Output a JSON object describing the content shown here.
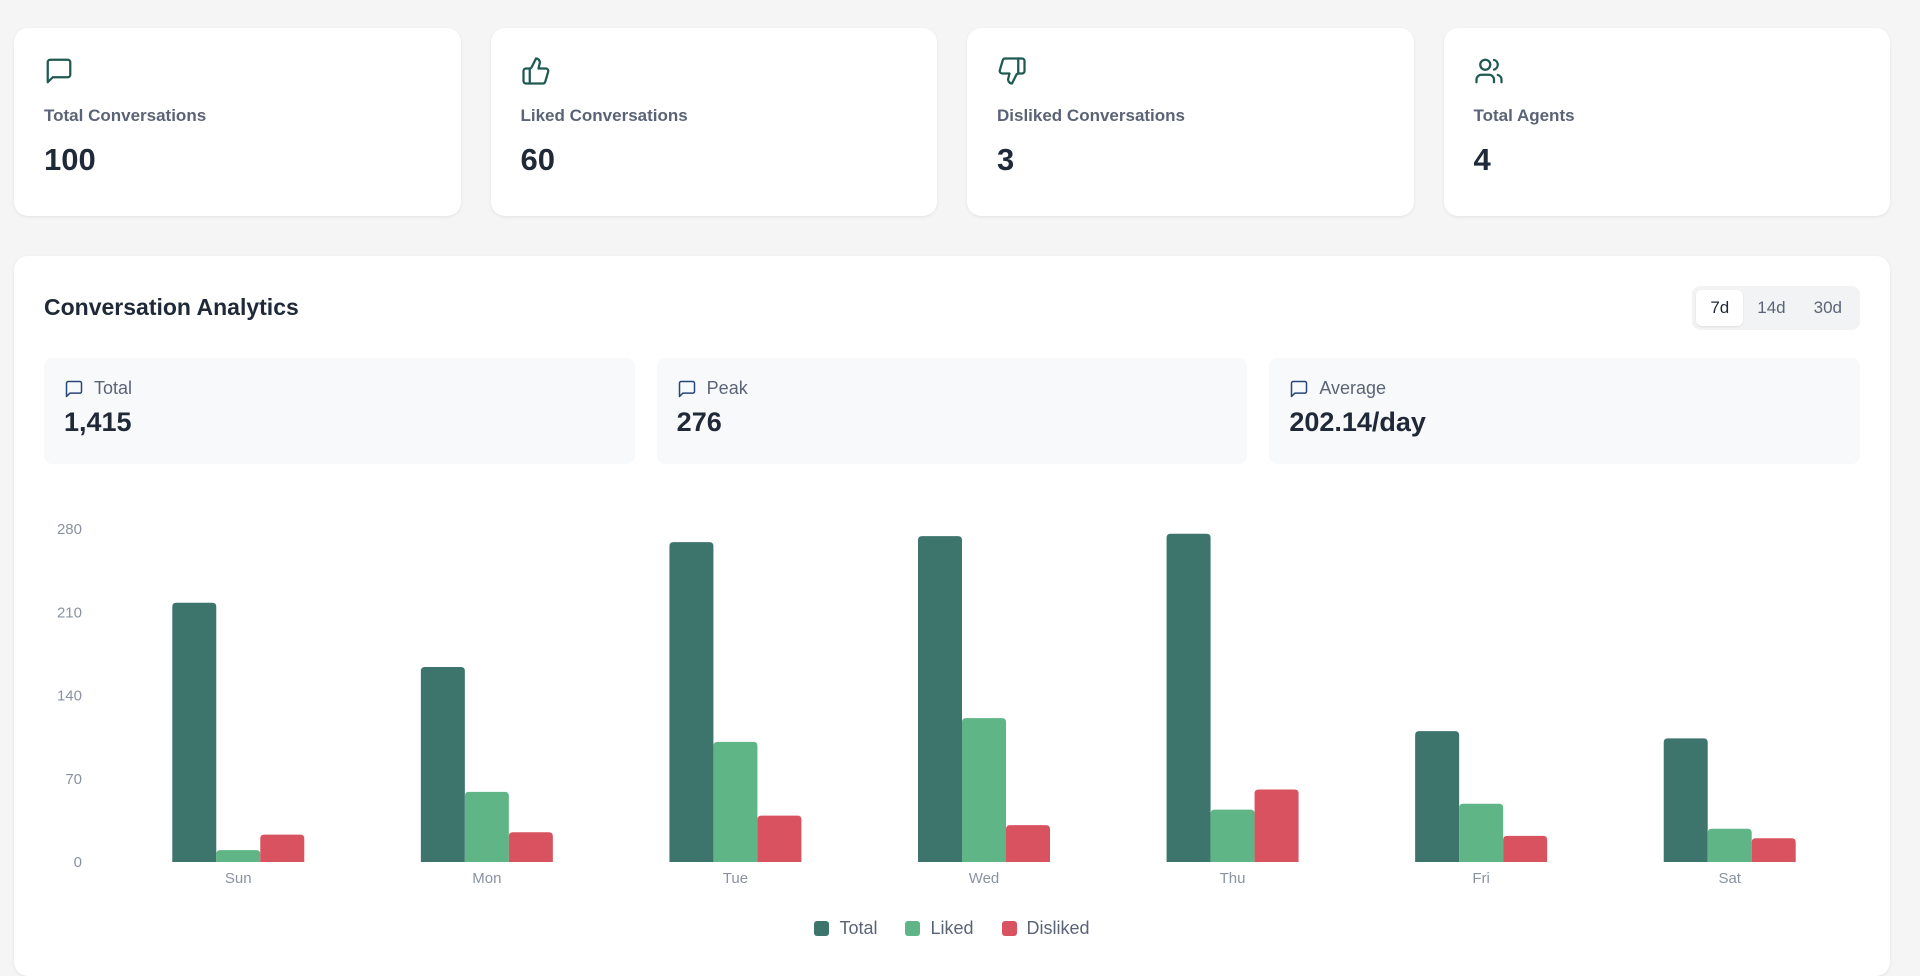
{
  "stats": [
    {
      "icon": "message-square-icon",
      "label": "Total Conversations",
      "value": "100"
    },
    {
      "icon": "thumbs-up-icon",
      "label": "Liked Conversations",
      "value": "60"
    },
    {
      "icon": "thumbs-down-icon",
      "label": "Disliked Conversations",
      "value": "3"
    },
    {
      "icon": "users-icon",
      "label": "Total Agents",
      "value": "4"
    }
  ],
  "analytics": {
    "title": "Conversation Analytics",
    "ranges": [
      "7d",
      "14d",
      "30d"
    ],
    "selected_range": "7d",
    "summary": [
      {
        "icon": "message-square-icon",
        "label": "Total",
        "value": "1,415"
      },
      {
        "icon": "message-square-icon",
        "label": "Peak",
        "value": "276"
      },
      {
        "icon": "message-square-icon",
        "label": "Average",
        "value": "202.14/day"
      }
    ]
  },
  "colors": {
    "total": "#3d756d",
    "liked": "#5fb585",
    "disliked": "#d9525f",
    "icon": "#1e5a52",
    "axis_text": "#8a92a0"
  },
  "chart_data": {
    "type": "bar",
    "categories": [
      "Sun",
      "Mon",
      "Tue",
      "Wed",
      "Thu",
      "Fri",
      "Sat"
    ],
    "series": [
      {
        "name": "Total",
        "values": [
          218,
          164,
          269,
          274,
          276,
          110,
          104
        ]
      },
      {
        "name": "Liked",
        "values": [
          10,
          59,
          101,
          121,
          44,
          49,
          28
        ]
      },
      {
        "name": "Disliked",
        "values": [
          23,
          25,
          39,
          31,
          61,
          22,
          20
        ]
      }
    ],
    "yticks": [
      "0",
      "70",
      "140",
      "210",
      "280"
    ],
    "ylim": [
      0,
      280
    ],
    "legend_position": "bottom-center",
    "grid": false
  }
}
